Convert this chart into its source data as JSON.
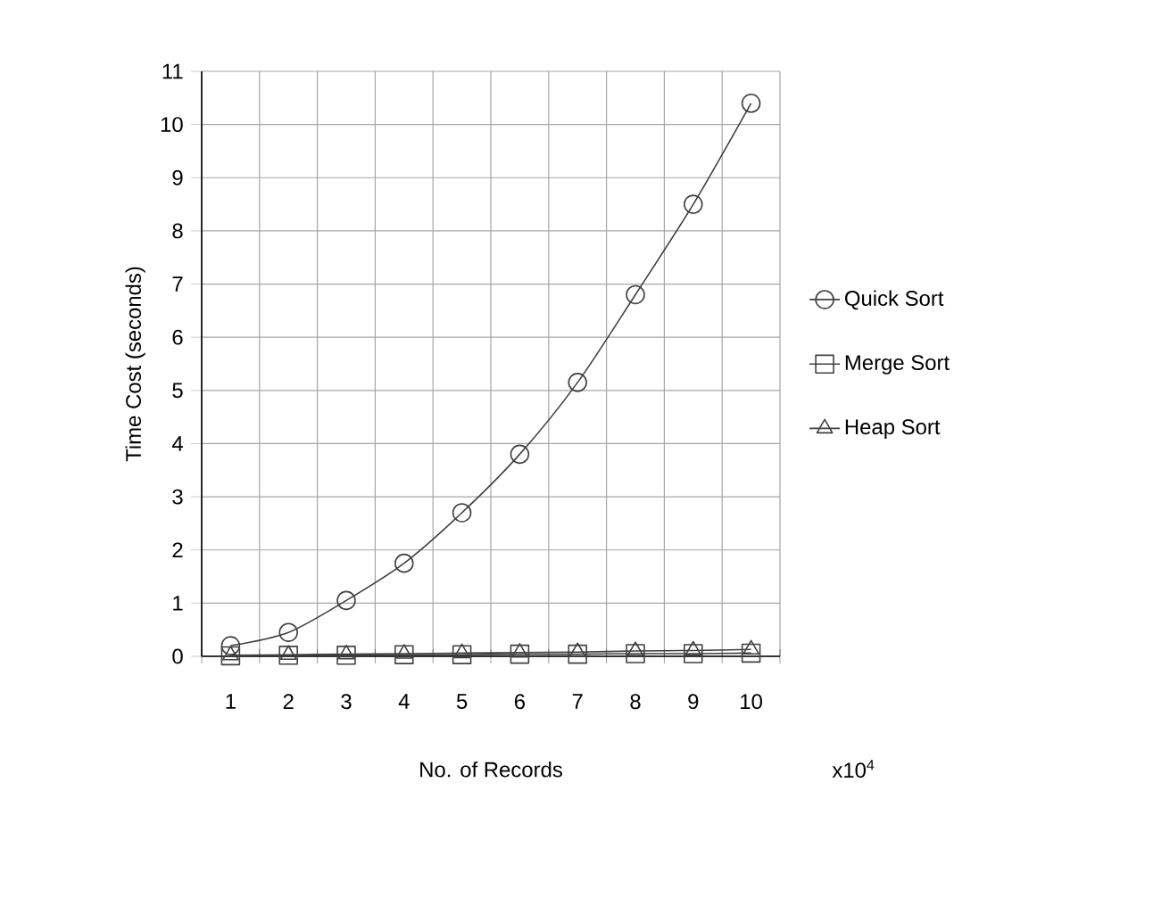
{
  "chart_data": {
    "type": "line",
    "xlabel": "No. of Records",
    "ylabel": "Time Cost (seconds)",
    "annotations": [
      "x10$^{4}$"
    ],
    "categories": [
      "1",
      "2",
      "3",
      "4",
      "5",
      "6",
      "7",
      "8",
      "9",
      "10"
    ],
    "ylim": [
      0,
      11
    ],
    "yticks": [
      0,
      1,
      2,
      3,
      4,
      5,
      6,
      7,
      8,
      9,
      10,
      11
    ],
    "grid": true,
    "legend": "right",
    "series": [
      {
        "name": "Quick Sort",
        "color": "#404040",
        "marker": "circle",
        "values": [
          0.2,
          0.45,
          1.05,
          1.75,
          2.7,
          3.8,
          5.15,
          6.8,
          8.5,
          10.4
        ]
      },
      {
        "name": "Merge Sort",
        "color": "#404040",
        "marker": "square",
        "values": [
          0.01,
          0.02,
          0.02,
          0.03,
          0.03,
          0.04,
          0.04,
          0.05,
          0.05,
          0.06
        ]
      },
      {
        "name": "Heap Sort",
        "color": "#404040",
        "marker": "triangle",
        "values": [
          0.02,
          0.03,
          0.04,
          0.05,
          0.06,
          0.07,
          0.08,
          0.1,
          0.11,
          0.13
        ]
      }
    ]
  }
}
